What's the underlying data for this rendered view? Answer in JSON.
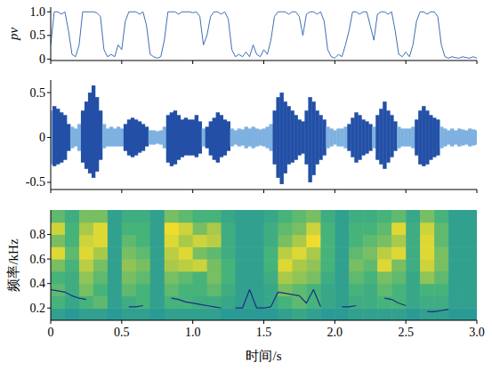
{
  "chart_data": [
    {
      "type": "line",
      "ylabel": "pv",
      "color": "#3f6fb5",
      "xlim": [
        0,
        3
      ],
      "ylim": [
        -0.03,
        1.1
      ],
      "xticks": [
        0,
        0.5,
        {
          "value": 1,
          "label": "1.0"
        },
        1.5,
        {
          "value": 2,
          "label": "2.0"
        },
        2.5,
        {
          "value": 3,
          "label": "3.0"
        }
      ],
      "yticks": [
        0,
        0.5,
        {
          "value": 1,
          "label": "1.0"
        }
      ],
      "tick_labels": "y",
      "grid": false,
      "x": [
        0,
        0.025,
        0.05,
        0.075,
        0.1,
        0.125,
        0.15,
        0.175,
        0.2,
        0.225,
        0.25,
        0.275,
        0.3,
        0.325,
        0.35,
        0.375,
        0.4,
        0.425,
        0.45,
        0.475,
        0.5,
        0.525,
        0.55,
        0.575,
        0.6,
        0.625,
        0.65,
        0.675,
        0.7,
        0.725,
        0.75,
        0.775,
        0.8,
        0.825,
        0.85,
        0.875,
        0.9,
        0.925,
        0.95,
        0.975,
        1,
        1.025,
        1.05,
        1.075,
        1.1,
        1.125,
        1.15,
        1.175,
        1.2,
        1.225,
        1.25,
        1.275,
        1.3,
        1.325,
        1.35,
        1.375,
        1.4,
        1.425,
        1.45,
        1.475,
        1.5,
        1.525,
        1.55,
        1.575,
        1.6,
        1.625,
        1.65,
        1.675,
        1.7,
        1.725,
        1.75,
        1.775,
        1.8,
        1.825,
        1.85,
        1.875,
        1.9,
        1.925,
        1.95,
        1.975,
        2,
        2.025,
        2.05,
        2.075,
        2.1,
        2.125,
        2.15,
        2.175,
        2.2,
        2.225,
        2.25,
        2.275,
        2.3,
        2.325,
        2.35,
        2.375,
        2.4,
        2.425,
        2.45,
        2.475,
        2.5,
        2.525,
        2.55,
        2.575,
        2.6,
        2.625,
        2.65,
        2.675,
        2.7,
        2.725,
        2.75,
        2.775,
        2.8,
        2.825,
        2.85,
        2.875,
        2.9,
        2.925,
        2.95,
        2.975,
        3
      ],
      "values": [
        0.3,
        1,
        1,
        0.95,
        1,
        0.6,
        0.1,
        0.05,
        0.3,
        1,
        1,
        1,
        1,
        0.98,
        0.9,
        0.2,
        0.05,
        0.1,
        0.05,
        0.3,
        0.2,
        0.8,
        1,
        1,
        1,
        0.95,
        1,
        0.7,
        0.1,
        0.05,
        0.02,
        0.05,
        0.4,
        1,
        1,
        1,
        0.95,
        1,
        1,
        1,
        0.98,
        1,
        0.9,
        0.3,
        0.5,
        0.9,
        1,
        1,
        0.95,
        1,
        0.85,
        0.2,
        0.05,
        0.1,
        0.05,
        0.15,
        0.05,
        0.3,
        0.1,
        0.05,
        0.2,
        0.1,
        0.4,
        0.9,
        1,
        1,
        1,
        0.95,
        1,
        1,
        0.9,
        0.5,
        0.95,
        1,
        1,
        0.95,
        1,
        0.8,
        0.2,
        0.05,
        0.02,
        0.1,
        0.05,
        0.3,
        0.6,
        1,
        1,
        0.95,
        1,
        1,
        0.7,
        0.4,
        0.95,
        1,
        1,
        0.95,
        1,
        0.6,
        0.1,
        0.05,
        0.15,
        0.05,
        0.3,
        0.8,
        1,
        1,
        0.95,
        1,
        1,
        0.9,
        0.3,
        0.05,
        0.02,
        0.05,
        0.03,
        0.02,
        0.05,
        0.03,
        0.02,
        0.05,
        0.02
      ]
    },
    {
      "type": "waveform",
      "xlim": [
        0,
        3
      ],
      "ylim": [
        -0.58,
        0.64
      ],
      "xticks": [
        0,
        0.5,
        {
          "value": 1,
          "label": "1.0"
        },
        1.5,
        {
          "value": 2,
          "label": "2.0"
        },
        2.5,
        {
          "value": 3,
          "label": "3.0"
        }
      ],
      "yticks": [
        -0.5,
        0,
        0.5
      ],
      "tick_labels": "y",
      "grid": false,
      "x": [
        0,
        0.025,
        0.05,
        0.075,
        0.1,
        0.125,
        0.15,
        0.175,
        0.2,
        0.225,
        0.25,
        0.275,
        0.3,
        0.325,
        0.35,
        0.375,
        0.4,
        0.425,
        0.45,
        0.475,
        0.5,
        0.525,
        0.55,
        0.575,
        0.6,
        0.625,
        0.65,
        0.675,
        0.7,
        0.725,
        0.75,
        0.775,
        0.8,
        0.825,
        0.85,
        0.875,
        0.9,
        0.925,
        0.95,
        0.975,
        1,
        1.025,
        1.05,
        1.075,
        1.1,
        1.125,
        1.15,
        1.175,
        1.2,
        1.225,
        1.25,
        1.275,
        1.3,
        1.325,
        1.35,
        1.375,
        1.4,
        1.425,
        1.45,
        1.475,
        1.5,
        1.525,
        1.55,
        1.575,
        1.6,
        1.625,
        1.65,
        1.675,
        1.7,
        1.725,
        1.75,
        1.775,
        1.8,
        1.825,
        1.85,
        1.875,
        1.9,
        1.925,
        1.95,
        1.975,
        2,
        2.025,
        2.05,
        2.075,
        2.1,
        2.125,
        2.15,
        2.175,
        2.2,
        2.225,
        2.25,
        2.275,
        2.3,
        2.325,
        2.35,
        2.375,
        2.4,
        2.425,
        2.45,
        2.475,
        2.5,
        2.525,
        2.55,
        2.575,
        2.6,
        2.625,
        2.65,
        2.675,
        2.7,
        2.725,
        2.75,
        2.775,
        2.8,
        2.825,
        2.85,
        2.875,
        2.9,
        2.925,
        2.95,
        2.975,
        3
      ],
      "upper": [
        0.3,
        0.35,
        0.32,
        0.28,
        0.25,
        0.15,
        0.12,
        0.1,
        0.15,
        0.3,
        0.4,
        0.5,
        0.58,
        0.45,
        0.3,
        0.15,
        0.1,
        0.12,
        0.1,
        0.12,
        0.1,
        0.15,
        0.2,
        0.22,
        0.2,
        0.18,
        0.15,
        0.12,
        0.08,
        0.08,
        0.07,
        0.08,
        0.12,
        0.25,
        0.28,
        0.3,
        0.25,
        0.2,
        0.22,
        0.2,
        0.2,
        0.25,
        0.18,
        0.1,
        0.12,
        0.18,
        0.22,
        0.28,
        0.25,
        0.2,
        0.18,
        0.1,
        0.08,
        0.1,
        0.09,
        0.12,
        0.1,
        0.12,
        0.1,
        0.09,
        0.1,
        0.12,
        0.15,
        0.3,
        0.45,
        0.5,
        0.4,
        0.35,
        0.3,
        0.25,
        0.2,
        0.18,
        0.3,
        0.45,
        0.4,
        0.3,
        0.25,
        0.2,
        0.12,
        0.1,
        0.08,
        0.1,
        0.1,
        0.12,
        0.15,
        0.22,
        0.28,
        0.25,
        0.2,
        0.18,
        0.15,
        0.12,
        0.25,
        0.32,
        0.4,
        0.3,
        0.25,
        0.18,
        0.12,
        0.1,
        0.1,
        0.1,
        0.12,
        0.2,
        0.3,
        0.35,
        0.3,
        0.25,
        0.22,
        0.2,
        0.12,
        0.1,
        0.08,
        0.1,
        0.08,
        0.1,
        0.09,
        0.08,
        0.1,
        0.09,
        0.08
      ],
      "lower": [
        -0.3,
        -0.32,
        -0.3,
        -0.28,
        -0.25,
        -0.15,
        -0.12,
        -0.1,
        -0.15,
        -0.28,
        -0.35,
        -0.4,
        -0.45,
        -0.38,
        -0.25,
        -0.12,
        -0.1,
        -0.1,
        -0.1,
        -0.1,
        -0.1,
        -0.15,
        -0.2,
        -0.22,
        -0.2,
        -0.17,
        -0.15,
        -0.1,
        -0.08,
        -0.08,
        -0.07,
        -0.08,
        -0.12,
        -0.28,
        -0.32,
        -0.3,
        -0.25,
        -0.22,
        -0.2,
        -0.2,
        -0.2,
        -0.22,
        -0.18,
        -0.1,
        -0.12,
        -0.2,
        -0.25,
        -0.28,
        -0.22,
        -0.2,
        -0.15,
        -0.1,
        -0.08,
        -0.1,
        -0.09,
        -0.12,
        -0.1,
        -0.12,
        -0.1,
        -0.09,
        -0.1,
        -0.12,
        -0.15,
        -0.3,
        -0.45,
        -0.52,
        -0.4,
        -0.3,
        -0.28,
        -0.25,
        -0.2,
        -0.18,
        -0.3,
        -0.5,
        -0.42,
        -0.3,
        -0.25,
        -0.2,
        -0.12,
        -0.1,
        -0.08,
        -0.1,
        -0.1,
        -0.12,
        -0.15,
        -0.22,
        -0.28,
        -0.25,
        -0.2,
        -0.18,
        -0.15,
        -0.12,
        -0.25,
        -0.3,
        -0.35,
        -0.28,
        -0.22,
        -0.15,
        -0.12,
        -0.1,
        -0.1,
        -0.1,
        -0.12,
        -0.2,
        -0.3,
        -0.32,
        -0.3,
        -0.25,
        -0.22,
        -0.2,
        -0.12,
        -0.1,
        -0.08,
        -0.1,
        -0.08,
        -0.1,
        -0.09,
        -0.08,
        -0.1,
        -0.09,
        -0.08
      ],
      "colors": [
        "#7eb1e0",
        "#2350a6",
        "#2350a6",
        "#2350a6",
        "#2350a6",
        "#2350a6",
        "#7eb1e0",
        "#7eb1e0",
        "#7eb1e0",
        "#2350a6",
        "#2350a6",
        "#2350a6",
        "#2350a6",
        "#2350a6",
        "#2350a6",
        "#7eb1e0",
        "#7eb1e0",
        "#7eb1e0",
        "#7eb1e0",
        "#7eb1e0",
        "#7eb1e0",
        "#2350a6",
        "#2350a6",
        "#2350a6",
        "#2350a6",
        "#2350a6",
        "#2350a6",
        "#2350a6",
        "#7eb1e0",
        "#7eb1e0",
        "#7eb1e0",
        "#7eb1e0",
        "#7eb1e0",
        "#2350a6",
        "#2350a6",
        "#2350a6",
        "#2350a6",
        "#2350a6",
        "#2350a6",
        "#2350a6",
        "#2350a6",
        "#2350a6",
        "#2350a6",
        "#7eb1e0",
        "#2350a6",
        "#2350a6",
        "#2350a6",
        "#2350a6",
        "#2350a6",
        "#2350a6",
        "#2350a6",
        "#7eb1e0",
        "#7eb1e0",
        "#7eb1e0",
        "#7eb1e0",
        "#7eb1e0",
        "#7eb1e0",
        "#7eb1e0",
        "#7eb1e0",
        "#7eb1e0",
        "#7eb1e0",
        "#7eb1e0",
        "#7eb1e0",
        "#2350a6",
        "#2350a6",
        "#2350a6",
        "#2350a6",
        "#2350a6",
        "#2350a6",
        "#2350a6",
        "#2350a6",
        "#2350a6",
        "#2350a6",
        "#2350a6",
        "#2350a6",
        "#2350a6",
        "#2350a6",
        "#2350a6",
        "#7eb1e0",
        "#7eb1e0",
        "#7eb1e0",
        "#7eb1e0",
        "#7eb1e0",
        "#7eb1e0",
        "#2350a6",
        "#2350a6",
        "#2350a6",
        "#2350a6",
        "#2350a6",
        "#2350a6",
        "#2350a6",
        "#7eb1e0",
        "#2350a6",
        "#2350a6",
        "#2350a6",
        "#2350a6",
        "#2350a6",
        "#2350a6",
        "#7eb1e0",
        "#7eb1e0",
        "#7eb1e0",
        "#7eb1e0",
        "#7eb1e0",
        "#2350a6",
        "#2350a6",
        "#2350a6",
        "#2350a6",
        "#2350a6",
        "#2350a6",
        "#2350a6",
        "#7eb1e0",
        "#7eb1e0",
        "#7eb1e0",
        "#7eb1e0",
        "#7eb1e0",
        "#7eb1e0",
        "#7eb1e0",
        "#7eb1e0",
        "#7eb1e0",
        "#7eb1e0",
        "#7eb1e0"
      ]
    },
    {
      "type": "heatmap",
      "xlabel": "时间/s",
      "ylabel": "频率/kHz",
      "xlim": [
        0,
        3
      ],
      "ylim": [
        0.1,
        1.0
      ],
      "xticks": [
        0,
        0.5,
        {
          "value": 1,
          "label": "1.0"
        },
        1.5,
        {
          "value": 2,
          "label": "2.0"
        },
        2.5,
        {
          "value": 3,
          "label": "3.0"
        }
      ],
      "yticks": [
        0.2,
        0.4,
        0.6,
        0.8
      ],
      "tick_labels": true,
      "grid": false,
      "clim": [
        0,
        1
      ],
      "x": [
        0.05,
        0.15,
        0.25,
        0.35,
        0.45,
        0.55,
        0.65,
        0.75,
        0.85,
        0.95,
        1.05,
        1.15,
        1.25,
        1.35,
        1.45,
        1.55,
        1.65,
        1.75,
        1.85,
        1.95,
        2.05,
        2.15,
        2.25,
        2.35,
        2.45,
        2.55,
        2.65,
        2.75,
        2.85,
        2.95
      ],
      "y": [
        0.15,
        0.25,
        0.35,
        0.45,
        0.55,
        0.65,
        0.75,
        0.85,
        0.95
      ],
      "values": [
        [
          0.35,
          0.3,
          0.35,
          0.35,
          0.3,
          0.35,
          0.35,
          0.3,
          0.35,
          0.35,
          0.35,
          0.35,
          0.3,
          0.3,
          0.3,
          0.3,
          0.35,
          0.4,
          0.35,
          0.3,
          0.3,
          0.35,
          0.35,
          0.35,
          0.35,
          0.3,
          0.35,
          0.35,
          0.3,
          0.3
        ],
        [
          0.5,
          0.4,
          0.5,
          0.55,
          0.35,
          0.45,
          0.5,
          0.35,
          0.5,
          0.5,
          0.45,
          0.45,
          0.4,
          0.35,
          0.35,
          0.4,
          0.5,
          0.55,
          0.5,
          0.4,
          0.35,
          0.45,
          0.45,
          0.5,
          0.5,
          0.4,
          0.45,
          0.45,
          0.35,
          0.35
        ],
        [
          0.55,
          0.45,
          0.6,
          0.5,
          0.35,
          0.55,
          0.5,
          0.35,
          0.55,
          0.5,
          0.5,
          0.55,
          0.45,
          0.35,
          0.35,
          0.4,
          0.6,
          0.55,
          0.5,
          0.4,
          0.35,
          0.5,
          0.45,
          0.55,
          0.5,
          0.4,
          0.5,
          0.5,
          0.35,
          0.35
        ],
        [
          0.5,
          0.45,
          0.65,
          0.55,
          0.35,
          0.6,
          0.55,
          0.35,
          0.6,
          0.55,
          0.5,
          0.6,
          0.5,
          0.35,
          0.35,
          0.45,
          0.7,
          0.65,
          0.6,
          0.45,
          0.35,
          0.55,
          0.5,
          0.6,
          0.55,
          0.4,
          0.65,
          0.55,
          0.35,
          0.35
        ],
        [
          0.6,
          0.5,
          0.75,
          0.6,
          0.35,
          0.65,
          0.6,
          0.35,
          0.7,
          0.75,
          0.8,
          0.6,
          0.5,
          0.35,
          0.35,
          0.5,
          0.85,
          0.7,
          0.65,
          0.5,
          0.35,
          0.6,
          0.55,
          0.85,
          0.6,
          0.45,
          0.8,
          0.6,
          0.35,
          0.35
        ],
        [
          0.85,
          0.55,
          0.85,
          0.7,
          0.35,
          0.6,
          0.55,
          0.35,
          0.75,
          0.85,
          0.6,
          0.55,
          0.45,
          0.35,
          0.35,
          0.5,
          0.75,
          0.85,
          0.7,
          0.5,
          0.35,
          0.55,
          0.6,
          0.75,
          0.85,
          0.45,
          0.85,
          0.6,
          0.35,
          0.35
        ],
        [
          0.6,
          0.5,
          0.8,
          0.85,
          0.35,
          0.55,
          0.5,
          0.35,
          0.85,
          0.7,
          0.8,
          0.75,
          0.45,
          0.35,
          0.35,
          0.45,
          0.6,
          0.7,
          0.9,
          0.5,
          0.35,
          0.5,
          0.55,
          0.6,
          0.7,
          0.45,
          0.85,
          0.55,
          0.35,
          0.35
        ],
        [
          0.8,
          0.5,
          0.7,
          0.85,
          0.35,
          0.5,
          0.5,
          0.35,
          0.9,
          0.8,
          0.6,
          0.7,
          0.45,
          0.35,
          0.35,
          0.45,
          0.55,
          0.6,
          0.8,
          0.5,
          0.35,
          0.5,
          0.5,
          0.55,
          0.85,
          0.45,
          0.8,
          0.55,
          0.35,
          0.35
        ],
        [
          0.55,
          0.45,
          0.6,
          0.6,
          0.35,
          0.45,
          0.45,
          0.35,
          0.6,
          0.55,
          0.5,
          0.5,
          0.4,
          0.35,
          0.35,
          0.4,
          0.5,
          0.55,
          0.6,
          0.45,
          0.35,
          0.45,
          0.45,
          0.5,
          0.55,
          0.4,
          0.6,
          0.5,
          0.35,
          0.35
        ]
      ],
      "series": [
        {
          "type": "line",
          "color": "#1b2f85",
          "x": [
            0,
            0.05,
            0.1,
            0.15,
            0.2,
            0.25,
            0.3,
            0.35,
            0.4,
            0.45,
            0.5,
            0.55,
            0.6,
            0.65,
            0.7,
            0.75,
            0.8,
            0.85,
            0.9,
            0.95,
            1,
            1.05,
            1.1,
            1.15,
            1.2,
            1.25,
            1.3,
            1.35,
            1.4,
            1.45,
            1.5,
            1.55,
            1.6,
            1.65,
            1.7,
            1.75,
            1.8,
            1.85,
            1.9,
            1.95,
            2,
            2.05,
            2.1,
            2.15,
            2.2,
            2.25,
            2.3,
            2.35,
            2.4,
            2.45,
            2.5,
            2.55,
            2.6,
            2.65,
            2.7,
            2.75,
            2.8,
            2.85,
            2.9,
            2.95,
            3
          ],
          "values": [
            0.35,
            0.34,
            0.33,
            0.3,
            0.28,
            0.27,
            null,
            null,
            null,
            null,
            null,
            0.21,
            0.21,
            0.22,
            null,
            null,
            null,
            0.28,
            0.27,
            0.25,
            0.24,
            0.23,
            0.22,
            0.21,
            0.2,
            null,
            0.2,
            0.2,
            0.35,
            0.2,
            0.2,
            0.21,
            0.33,
            0.32,
            0.31,
            0.3,
            0.24,
            0.35,
            0.21,
            null,
            null,
            0.21,
            0.21,
            0.22,
            null,
            null,
            null,
            0.28,
            0.27,
            0.24,
            0.22,
            null,
            null,
            0.17,
            0.17,
            0.18,
            0.19,
            null,
            null,
            null,
            null
          ]
        }
      ]
    }
  ]
}
